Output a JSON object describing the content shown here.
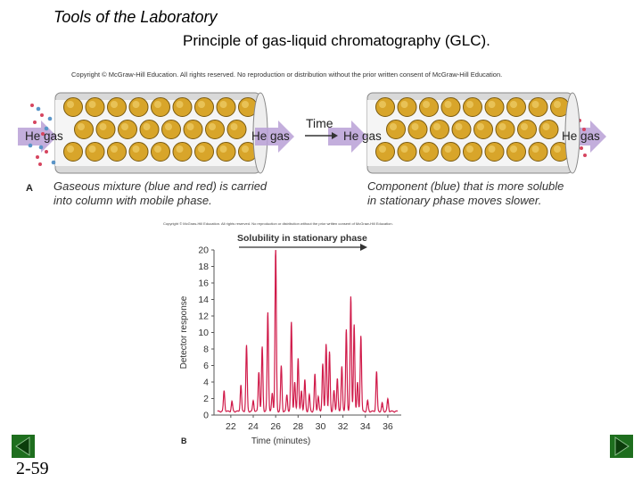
{
  "slide": {
    "title": "Tools of the Laboratory",
    "subtitle": "Principle of gas-liquid chromatography (GLC).",
    "number": "2-59"
  },
  "figure_a": {
    "copyright": "Copyright © McGraw-Hill Education.  All rights reserved. No reproduction or distribution without the prior written consent of McGraw-Hill Education.",
    "panel_label": "A",
    "gas_label": "He gas",
    "time_label": "Time",
    "caption_left_1": "Gaseous mixture (blue and red) is carried",
    "caption_left_2": "into column with mobile phase.",
    "caption_right_1": "Component (blue) that is more soluble",
    "caption_right_2": "in stationary phase moves slower.",
    "colors": {
      "bead": "#d8a52a",
      "column_band": "#ffffff",
      "arrow": "#b9a0d6",
      "red_particle": "#d6455f",
      "blue_particle": "#5a95c8"
    }
  },
  "figure_b": {
    "copyright": "Copyright © McGraw-Hill Education. All rights reserved. No reproduction or distribution without the prior written consent of McGraw-Hill Education.",
    "panel_label": "B",
    "solubility_label": "Solubility in stationary phase",
    "chart_data": {
      "type": "line",
      "ylabel": "Detector response",
      "xlabel": "Time (minutes)",
      "xlim": [
        20.5,
        37.2
      ],
      "ylim": [
        0,
        20
      ],
      "x_ticks": [
        22,
        24,
        26,
        28,
        30,
        32,
        34,
        36
      ],
      "y_ticks": [
        0,
        2,
        4,
        6,
        8,
        10,
        12,
        14,
        16,
        18,
        20
      ],
      "series": [
        {
          "color": "#d01b4a",
          "peaks": [
            [
              21.4,
              2.5
            ],
            [
              22.1,
              1.2
            ],
            [
              22.9,
              3.2
            ],
            [
              23.4,
              8.0
            ],
            [
              24.0,
              1.3
            ],
            [
              24.5,
              4.8
            ],
            [
              24.8,
              7.8
            ],
            [
              25.3,
              12.0
            ],
            [
              25.7,
              2.2
            ],
            [
              26.0,
              19.8
            ],
            [
              26.5,
              5.5
            ],
            [
              27.0,
              2.0
            ],
            [
              27.4,
              10.8
            ],
            [
              27.7,
              3.5
            ],
            [
              28.0,
              6.5
            ],
            [
              28.3,
              2.5
            ],
            [
              28.6,
              3.8
            ],
            [
              29.0,
              2.0
            ],
            [
              29.5,
              4.5
            ],
            [
              29.8,
              1.8
            ],
            [
              30.2,
              5.8
            ],
            [
              30.5,
              8.2
            ],
            [
              30.8,
              7.2
            ],
            [
              31.2,
              2.5
            ],
            [
              31.5,
              4.0
            ],
            [
              31.9,
              5.5
            ],
            [
              32.3,
              10.0
            ],
            [
              32.7,
              14.0
            ],
            [
              33.0,
              10.5
            ],
            [
              33.3,
              3.5
            ],
            [
              33.6,
              9.2
            ],
            [
              34.2,
              1.3
            ],
            [
              35.0,
              4.8
            ],
            [
              35.5,
              1.0
            ],
            [
              36.0,
              1.5
            ]
          ]
        }
      ]
    }
  },
  "nav": {
    "prev_icon": "triangle-left-icon",
    "next_icon": "triangle-right-icon",
    "color": "#1e6e1e"
  }
}
